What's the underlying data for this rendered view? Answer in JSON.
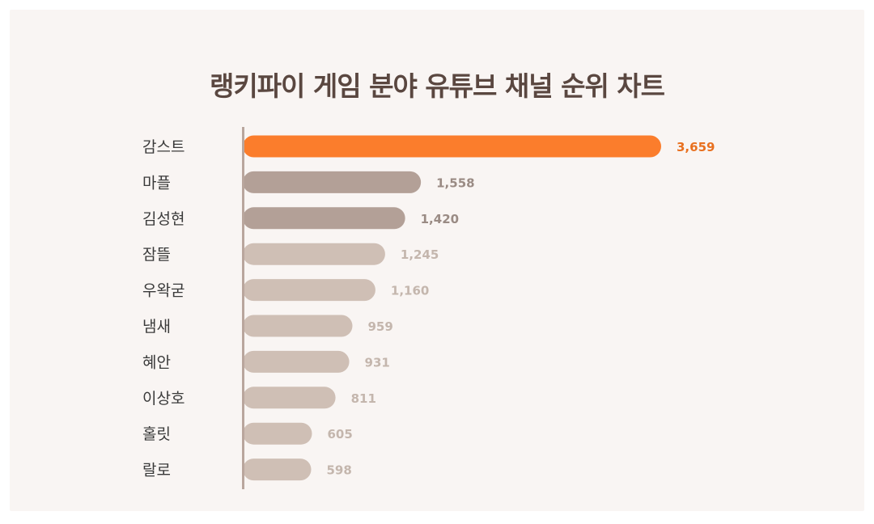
{
  "chart_data": {
    "type": "bar",
    "orientation": "horizontal",
    "title": "랭키파이 게임 분야 유튜브 채널 순위 차트",
    "categories": [
      "감스트",
      "마플",
      "김성현",
      "잠뜰",
      "우왁굳",
      "냄새",
      "혜안",
      "이상호",
      "홀릿",
      "랄로"
    ],
    "value_labels": [
      "3,659",
      "1,558",
      "1,420",
      "1,245",
      "1,160",
      "959",
      "931",
      "811",
      "605",
      "598"
    ],
    "values": [
      3659,
      1558,
      1420,
      1245,
      1160,
      959,
      931,
      811,
      605,
      598
    ],
    "colors": {
      "highlight": "#fb7d2c",
      "highlight_text": "#e8701f",
      "mid": "#b3a097",
      "mid_text": "#9a8b84",
      "light": "#cfbfb5",
      "light_text": "#c4b6ad",
      "axis": "#b9a69d"
    },
    "color_tiers": [
      "highlight",
      "mid",
      "mid",
      "light",
      "light",
      "light",
      "light",
      "light",
      "light",
      "light"
    ],
    "grid": false,
    "legend": "none"
  }
}
